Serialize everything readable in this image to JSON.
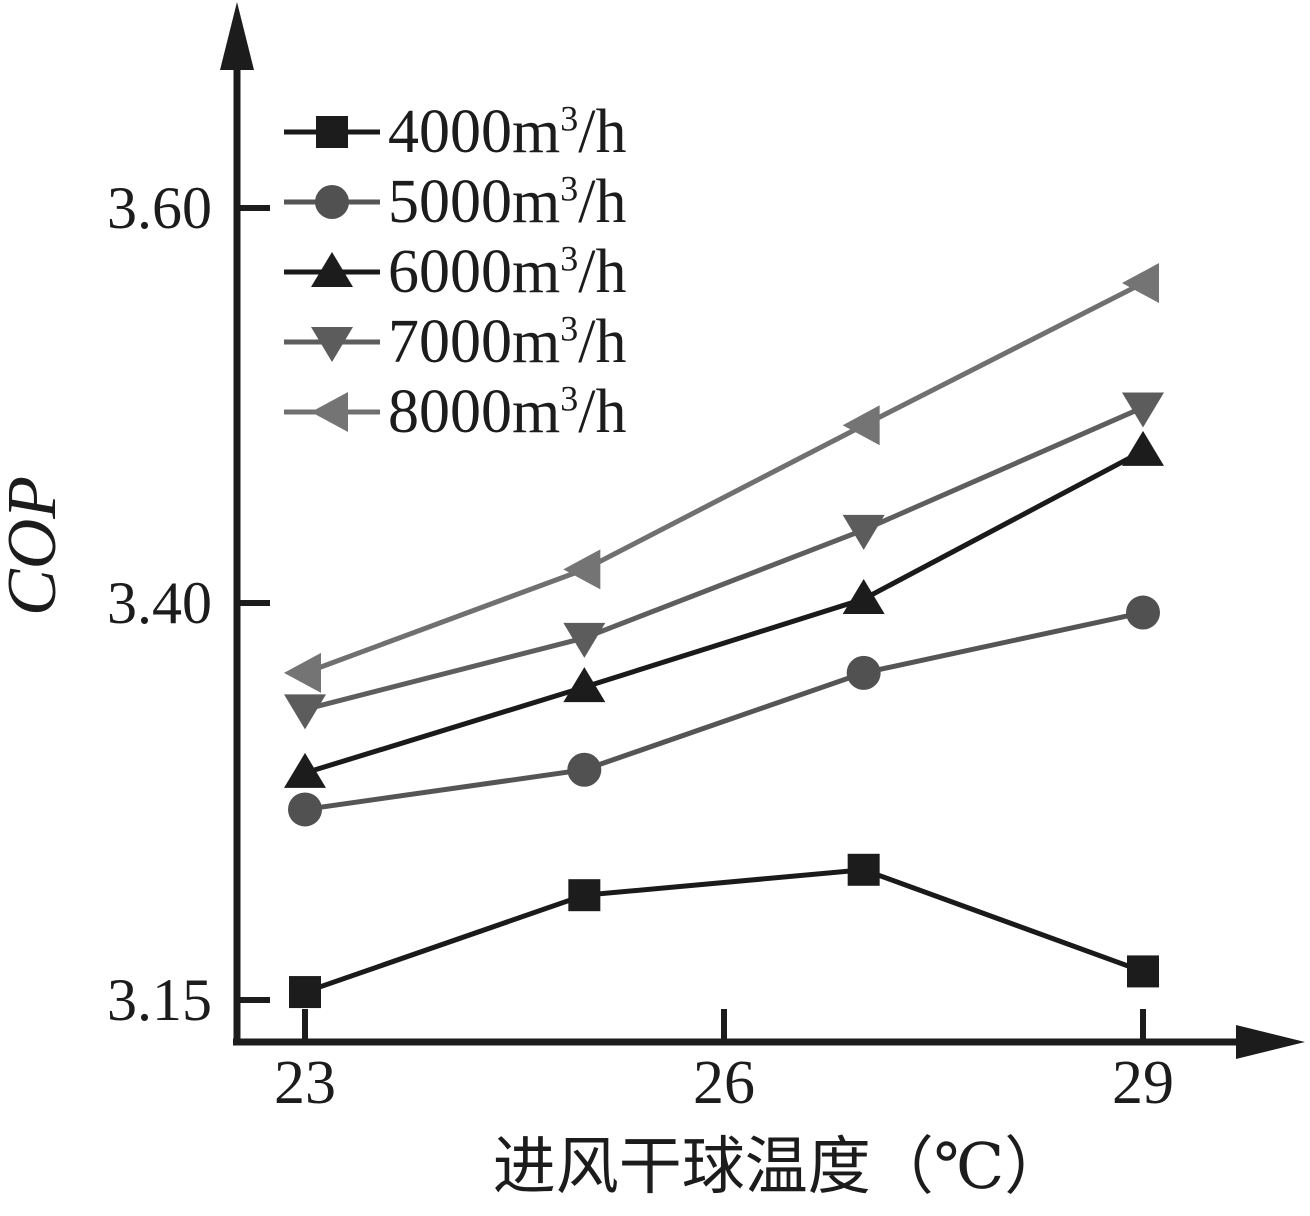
{
  "figure": {
    "background": "#ffffff",
    "axis_color": "#1c1c1c"
  },
  "chart_data": {
    "type": "line",
    "title": "",
    "xlabel": "进风干球温度（℃）",
    "ylabel": "COP",
    "x": [
      23,
      25,
      27,
      29
    ],
    "x_ticks": [
      23,
      26,
      29
    ],
    "x_tick_labels": [
      "23",
      "26",
      "29"
    ],
    "xlim": [
      23,
      29
    ],
    "y_ticks": [
      "3.15",
      "3.40",
      "3.60"
    ],
    "y_scale_note": "ticks equally spaced although intervals are 0.25 and 0.20 (non-linear axis)",
    "grid": false,
    "legend_position": "top-left",
    "series": [
      {
        "name": "4000m³/h",
        "label_prefix": "4000m",
        "label_sup": "3",
        "label_suffix": "/h",
        "marker": "square",
        "marker_color": "#1c1c1c",
        "line_color": "#1a1a1a",
        "values": [
          3.155,
          3.216,
          3.232,
          3.168
        ]
      },
      {
        "name": "5000m³/h",
        "label_prefix": "5000m",
        "label_sup": "3",
        "label_suffix": "/h",
        "marker": "circle",
        "marker_color": "#515151",
        "line_color": "#555555",
        "values": [
          3.27,
          3.295,
          3.356,
          3.394
        ]
      },
      {
        "name": "6000m³/h",
        "label_prefix": "6000m",
        "label_sup": "3",
        "label_suffix": "/h",
        "marker": "triangle-up",
        "marker_color": "#1c1c1c",
        "line_color": "#1a1a1a",
        "values": [
          3.293,
          3.347,
          3.402,
          3.477
        ]
      },
      {
        "name": "7000m³/h",
        "label_prefix": "7000m",
        "label_sup": "3",
        "label_suffix": "/h",
        "marker": "triangle-down",
        "marker_color": "#5c5c5c",
        "line_color": "#5e5e5e",
        "values": [
          3.333,
          3.378,
          3.437,
          3.499
        ]
      },
      {
        "name": "8000m³/h",
        "label_prefix": "8000m",
        "label_sup": "3",
        "label_suffix": "/h",
        "marker": "triangle-left",
        "marker_color": "#747474",
        "line_color": "#707070",
        "values": [
          3.356,
          3.417,
          3.49,
          3.562
        ]
      }
    ]
  }
}
